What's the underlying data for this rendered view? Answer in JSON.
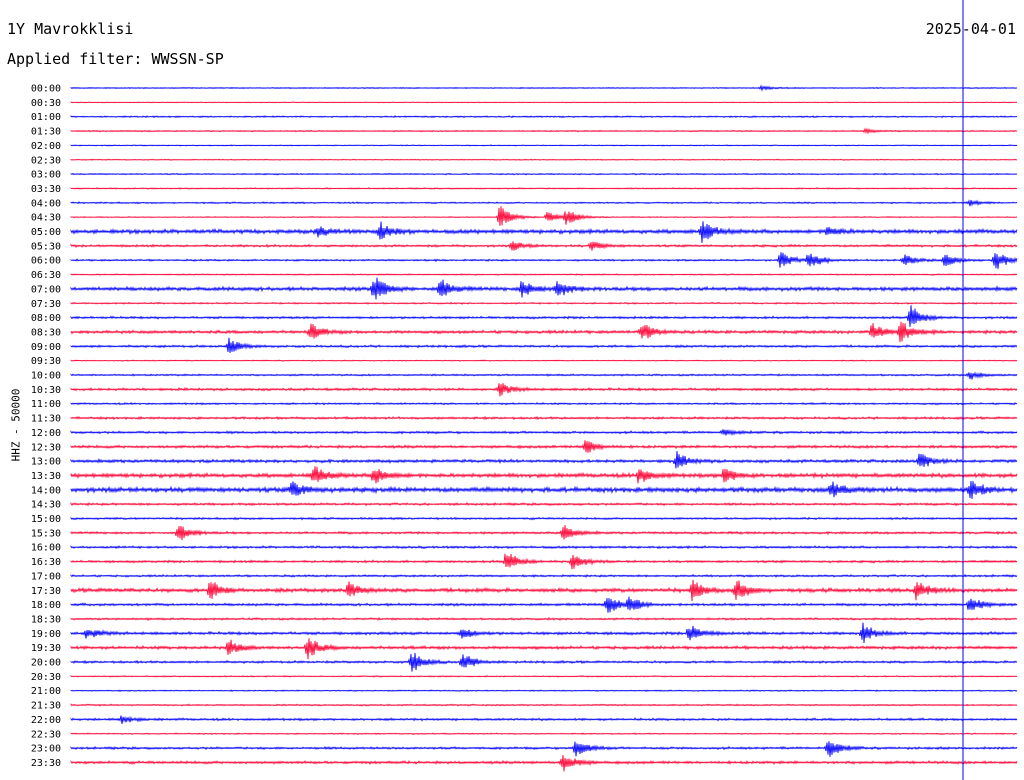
{
  "header": {
    "station": "1Y Mavrokklisi",
    "date": "2025-04-01",
    "filter_label": "Applied filter: WWSSN-SP"
  },
  "chart_data": {
    "type": "helicorder",
    "ylabel": "HHZ - 50000",
    "row_labels": [
      "00:00",
      "00:30",
      "01:00",
      "01:30",
      "02:00",
      "02:30",
      "03:00",
      "03:30",
      "04:00",
      "04:30",
      "05:00",
      "05:30",
      "06:00",
      "06:30",
      "07:00",
      "07:30",
      "08:00",
      "08:30",
      "09:00",
      "09:30",
      "10:00",
      "10:30",
      "11:00",
      "11:30",
      "12:00",
      "12:30",
      "13:00",
      "13:30",
      "14:00",
      "14:30",
      "15:00",
      "15:30",
      "16:00",
      "16:30",
      "17:00",
      "17:30",
      "18:00",
      "18:30",
      "19:00",
      "19:30",
      "20:00",
      "20:30",
      "21:00",
      "21:30",
      "22:00",
      "22:30",
      "23:00",
      "23:30"
    ],
    "row_minutes": 30,
    "colors": [
      "#0000ff",
      "#ff0033"
    ],
    "current_time_marker": "00:30",
    "noise_levels": [
      0.4,
      0.3,
      0.6,
      0.5,
      0.4,
      0.4,
      0.5,
      0.5,
      0.6,
      0.4,
      1.6,
      0.9,
      0.7,
      0.5,
      1.5,
      0.6,
      0.9,
      1.2,
      0.9,
      0.4,
      0.7,
      1.0,
      0.7,
      0.9,
      0.9,
      1.1,
      1.2,
      1.6,
      1.9,
      0.9,
      0.8,
      0.9,
      0.9,
      0.9,
      0.8,
      1.5,
      1.0,
      0.8,
      1.1,
      1.2,
      0.9,
      0.5,
      0.5,
      0.6,
      0.9,
      0.5,
      0.9,
      1.1
    ],
    "events": [
      {
        "row": 0,
        "minute": 21.9,
        "amp": 2
      },
      {
        "row": 3,
        "minute": 25.2,
        "amp": 2
      },
      {
        "row": 8,
        "minute": 28.5,
        "amp": 3
      },
      {
        "row": 9,
        "minute": 13.6,
        "amp": 12
      },
      {
        "row": 9,
        "minute": 15.1,
        "amp": 6
      },
      {
        "row": 9,
        "minute": 15.7,
        "amp": 8
      },
      {
        "row": 10,
        "minute": 7.8,
        "amp": 5
      },
      {
        "row": 10,
        "minute": 9.8,
        "amp": 9
      },
      {
        "row": 10,
        "minute": 20.0,
        "amp": 12
      },
      {
        "row": 10,
        "minute": 24.0,
        "amp": 5
      },
      {
        "row": 11,
        "minute": 14.0,
        "amp": 5
      },
      {
        "row": 11,
        "minute": 16.5,
        "amp": 5
      },
      {
        "row": 12,
        "minute": 22.5,
        "amp": 9
      },
      {
        "row": 12,
        "minute": 23.4,
        "amp": 10
      },
      {
        "row": 12,
        "minute": 26.4,
        "amp": 6
      },
      {
        "row": 12,
        "minute": 27.7,
        "amp": 7
      },
      {
        "row": 12,
        "minute": 29.3,
        "amp": 12
      },
      {
        "row": 14,
        "minute": 9.6,
        "amp": 14
      },
      {
        "row": 14,
        "minute": 11.7,
        "amp": 10
      },
      {
        "row": 14,
        "minute": 14.3,
        "amp": 9
      },
      {
        "row": 14,
        "minute": 15.4,
        "amp": 11
      },
      {
        "row": 16,
        "minute": 26.6,
        "amp": 14
      },
      {
        "row": 17,
        "minute": 7.6,
        "amp": 8
      },
      {
        "row": 17,
        "minute": 18.1,
        "amp": 10
      },
      {
        "row": 17,
        "minute": 25.4,
        "amp": 9
      },
      {
        "row": 17,
        "minute": 26.3,
        "amp": 12
      },
      {
        "row": 18,
        "minute": 5.0,
        "amp": 8
      },
      {
        "row": 20,
        "minute": 28.5,
        "amp": 5
      },
      {
        "row": 21,
        "minute": 13.6,
        "amp": 7
      },
      {
        "row": 24,
        "minute": 20.7,
        "amp": 4
      },
      {
        "row": 25,
        "minute": 16.3,
        "amp": 8
      },
      {
        "row": 26,
        "minute": 19.2,
        "amp": 9
      },
      {
        "row": 26,
        "minute": 26.9,
        "amp": 9
      },
      {
        "row": 27,
        "minute": 7.7,
        "amp": 10
      },
      {
        "row": 27,
        "minute": 9.6,
        "amp": 9
      },
      {
        "row": 27,
        "minute": 18.0,
        "amp": 9
      },
      {
        "row": 27,
        "minute": 20.7,
        "amp": 8
      },
      {
        "row": 28,
        "minute": 7.0,
        "amp": 9
      },
      {
        "row": 28,
        "minute": 24.1,
        "amp": 8
      },
      {
        "row": 28,
        "minute": 28.5,
        "amp": 10
      },
      {
        "row": 31,
        "minute": 3.4,
        "amp": 10
      },
      {
        "row": 31,
        "minute": 15.6,
        "amp": 9
      },
      {
        "row": 33,
        "minute": 13.8,
        "amp": 12
      },
      {
        "row": 33,
        "minute": 15.9,
        "amp": 9
      },
      {
        "row": 35,
        "minute": 4.4,
        "amp": 10
      },
      {
        "row": 35,
        "minute": 8.8,
        "amp": 9
      },
      {
        "row": 35,
        "minute": 19.7,
        "amp": 11
      },
      {
        "row": 35,
        "minute": 21.1,
        "amp": 11
      },
      {
        "row": 35,
        "minute": 26.8,
        "amp": 12
      },
      {
        "row": 36,
        "minute": 17.0,
        "amp": 11
      },
      {
        "row": 36,
        "minute": 17.7,
        "amp": 9
      },
      {
        "row": 36,
        "minute": 28.5,
        "amp": 9
      },
      {
        "row": 38,
        "minute": 0.5,
        "amp": 6
      },
      {
        "row": 38,
        "minute": 12.4,
        "amp": 6
      },
      {
        "row": 38,
        "minute": 19.6,
        "amp": 10
      },
      {
        "row": 38,
        "minute": 25.1,
        "amp": 10
      },
      {
        "row": 39,
        "minute": 5.0,
        "amp": 9
      },
      {
        "row": 39,
        "minute": 7.5,
        "amp": 12
      },
      {
        "row": 40,
        "minute": 10.8,
        "amp": 12
      },
      {
        "row": 40,
        "minute": 12.4,
        "amp": 10
      },
      {
        "row": 44,
        "minute": 1.6,
        "amp": 4
      },
      {
        "row": 46,
        "minute": 16.0,
        "amp": 10
      },
      {
        "row": 46,
        "minute": 24.0,
        "amp": 12
      },
      {
        "row": 47,
        "minute": 15.6,
        "amp": 11
      }
    ]
  }
}
